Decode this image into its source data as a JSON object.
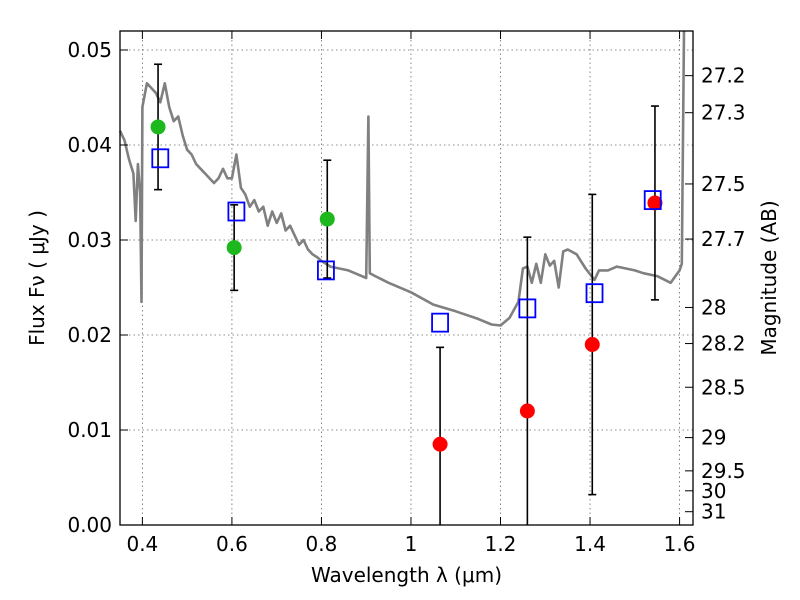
{
  "chart_data": {
    "type": "scatter",
    "xlabel": "Wavelength  λ (μm)",
    "ylabel": "Flux  Fν  ( μJy )",
    "ylabel_right": "Magnitude (AB)",
    "xlim": [
      0.35,
      1.63
    ],
    "ylim": [
      0.0,
      0.052
    ],
    "x_ticks": [
      0.4,
      0.6,
      0.8,
      1.0,
      1.2,
      1.4,
      1.6
    ],
    "x_tick_labels": [
      "0.4",
      "0.6",
      "0.8",
      "1",
      "1.2",
      "1.4",
      "1.6"
    ],
    "y_ticks": [
      0.0,
      0.01,
      0.02,
      0.03,
      0.04,
      0.05
    ],
    "y_tick_labels": [
      "0.00",
      "0.01",
      "0.02",
      "0.03",
      "0.04",
      "0.05"
    ],
    "right_ticks": [
      {
        "flux": 0.0473,
        "label": "27.2"
      },
      {
        "flux": 0.0434,
        "label": "27.3"
      },
      {
        "flux": 0.0359,
        "label": "27.5"
      },
      {
        "flux": 0.0301,
        "label": "27.7"
      },
      {
        "flux": 0.0229,
        "label": "28"
      },
      {
        "flux": 0.0191,
        "label": "28.2"
      },
      {
        "flux": 0.0145,
        "label": "28.5"
      },
      {
        "flux": 0.0092,
        "label": "29"
      },
      {
        "flux": 0.0057,
        "label": "29.5"
      },
      {
        "flux": 0.0036,
        "label": "30"
      },
      {
        "flux": 0.0014,
        "label": "31"
      }
    ],
    "grid": true,
    "colors": {
      "model": "#808080",
      "green": "#1db81d",
      "red": "#ff0000",
      "box": "#0000ff",
      "error": "#000000"
    },
    "model_spectrum": {
      "x": [
        0.35,
        0.36,
        0.37,
        0.38,
        0.385,
        0.39,
        0.395,
        0.398,
        0.4,
        0.41,
        0.42,
        0.43,
        0.44,
        0.45,
        0.46,
        0.47,
        0.48,
        0.49,
        0.5,
        0.51,
        0.52,
        0.53,
        0.54,
        0.55,
        0.56,
        0.57,
        0.58,
        0.59,
        0.6,
        0.61,
        0.62,
        0.63,
        0.64,
        0.65,
        0.66,
        0.67,
        0.68,
        0.69,
        0.7,
        0.71,
        0.72,
        0.73,
        0.74,
        0.75,
        0.76,
        0.77,
        0.78,
        0.79,
        0.8,
        0.82,
        0.84,
        0.86,
        0.88,
        0.9,
        0.905,
        0.908,
        0.912,
        0.92,
        0.95,
        1.0,
        1.05,
        1.1,
        1.15,
        1.18,
        1.2,
        1.22,
        1.24,
        1.25,
        1.26,
        1.27,
        1.28,
        1.29,
        1.3,
        1.31,
        1.32,
        1.33,
        1.34,
        1.35,
        1.37,
        1.39,
        1.41,
        1.42,
        1.44,
        1.46,
        1.48,
        1.5,
        1.52,
        1.55,
        1.58,
        1.6,
        1.605,
        1.61
      ],
      "y": [
        0.0415,
        0.0405,
        0.0385,
        0.037,
        0.032,
        0.038,
        0.035,
        0.0235,
        0.044,
        0.0465,
        0.046,
        0.0455,
        0.0445,
        0.0465,
        0.044,
        0.0425,
        0.043,
        0.041,
        0.0395,
        0.039,
        0.038,
        0.0375,
        0.037,
        0.0365,
        0.036,
        0.0365,
        0.0375,
        0.0365,
        0.0365,
        0.039,
        0.0355,
        0.0348,
        0.0335,
        0.0342,
        0.033,
        0.0335,
        0.0315,
        0.033,
        0.0318,
        0.0328,
        0.031,
        0.0315,
        0.0305,
        0.0295,
        0.03,
        0.029,
        0.0285,
        0.0282,
        0.0278,
        0.0272,
        0.027,
        0.0268,
        0.0264,
        0.026,
        0.043,
        0.0265,
        0.0264,
        0.0262,
        0.0255,
        0.0245,
        0.0232,
        0.0225,
        0.0217,
        0.0211,
        0.021,
        0.0218,
        0.0235,
        0.027,
        0.0272,
        0.0255,
        0.0275,
        0.0255,
        0.0285,
        0.0273,
        0.0278,
        0.025,
        0.0288,
        0.029,
        0.0285,
        0.027,
        0.0258,
        0.0268,
        0.0268,
        0.0272,
        0.027,
        0.0268,
        0.0265,
        0.0262,
        0.0255,
        0.0268,
        0.0275,
        0.052
      ]
    },
    "series": [
      {
        "marker": "circle",
        "color_key": "green",
        "x": [
          0.435,
          0.605,
          0.813
        ],
        "y": [
          0.0419,
          0.0292,
          0.0322
        ],
        "err": [
          0.0066,
          0.0045,
          0.0062
        ]
      },
      {
        "marker": "circle",
        "color_key": "red",
        "x": [
          1.065,
          1.26,
          1.405,
          1.545
        ],
        "y": [
          0.0085,
          0.012,
          0.019,
          0.0339
        ],
        "err": [
          0.0102,
          0.0183,
          0.0158,
          0.0102
        ]
      },
      {
        "marker": "open-square",
        "color_key": "box",
        "x": [
          0.44,
          0.61,
          0.81,
          1.065,
          1.26,
          1.41,
          1.54
        ],
        "y": [
          0.0386,
          0.033,
          0.0268,
          0.0213,
          0.0228,
          0.0244,
          0.0342
        ]
      }
    ]
  }
}
